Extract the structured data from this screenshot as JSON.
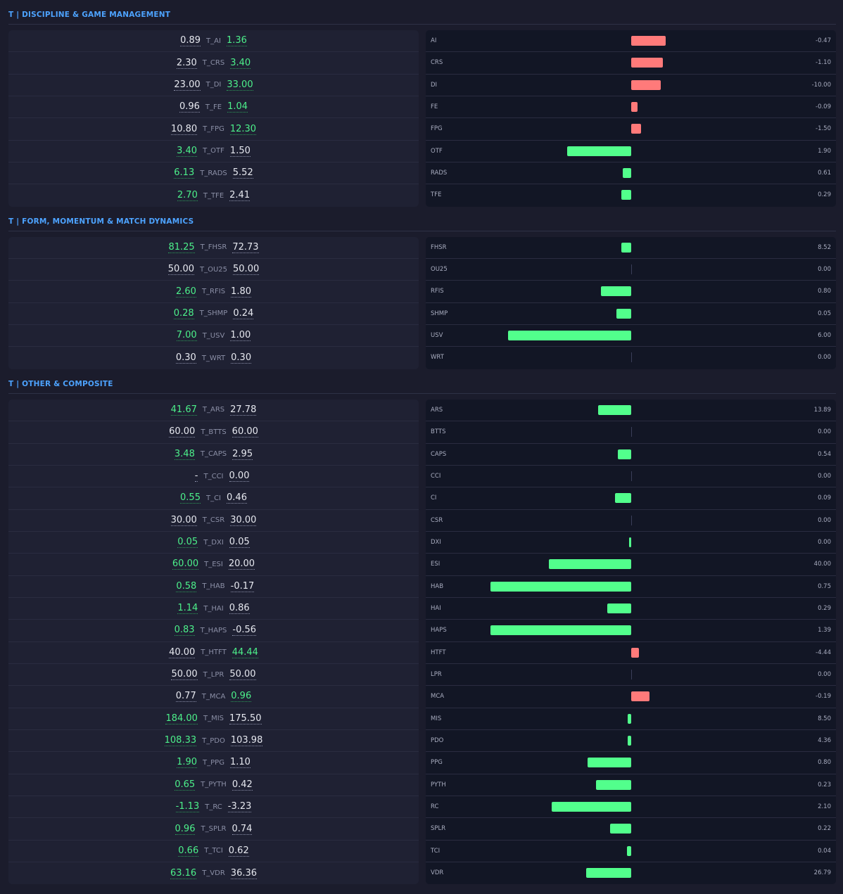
{
  "colors": {
    "accent": "#4da3ff",
    "better": "#4cf08a",
    "bar_positive": "#52ff8c",
    "bar_negative": "#ff7a7a"
  },
  "sections": [
    {
      "title": "T | DISCIPLINE & GAME MANAGEMENT",
      "rows": [
        {
          "left": "0.89",
          "label": "T_AI",
          "right": "1.36",
          "better": "right",
          "metric": "AI",
          "diff": "-0.47",
          "bar_pct": 17
        },
        {
          "left": "2.30",
          "label": "T_CRS",
          "right": "3.40",
          "better": "right",
          "metric": "CRS",
          "diff": "-1.10",
          "bar_pct": 15.5
        },
        {
          "left": "23.00",
          "label": "T_DI",
          "right": "33.00",
          "better": "right",
          "metric": "DI",
          "diff": "-10.00",
          "bar_pct": 14.5
        },
        {
          "left": "0.96",
          "label": "T_FE",
          "right": "1.04",
          "better": "right",
          "metric": "FE",
          "diff": "-0.09",
          "bar_pct": 3.4
        },
        {
          "left": "10.80",
          "label": "T_FPG",
          "right": "12.30",
          "better": "right",
          "metric": "FPG",
          "diff": "-1.50",
          "bar_pct": 5
        },
        {
          "left": "3.40",
          "label": "T_OTF",
          "right": "1.50",
          "better": "left",
          "metric": "OTF",
          "diff": "1.90",
          "bar_pct": 31
        },
        {
          "left": "6.13",
          "label": "T_RADS",
          "right": "5.52",
          "better": "left",
          "metric": "RADS",
          "diff": "0.61",
          "bar_pct": 4
        },
        {
          "left": "2.70",
          "label": "T_TFE",
          "right": "2.41",
          "better": "left",
          "metric": "TFE",
          "diff": "0.29",
          "bar_pct": 4.5
        }
      ]
    },
    {
      "title": "T | FORM, MOMENTUM & MATCH DYNAMICS",
      "rows": [
        {
          "left": "81.25",
          "label": "T_FHSR",
          "right": "72.73",
          "better": "left",
          "metric": "FHSR",
          "diff": "8.52",
          "bar_pct": 4.5
        },
        {
          "left": "50.00",
          "label": "T_OU25",
          "right": "50.00",
          "better": "none",
          "metric": "OU25",
          "diff": "0.00",
          "bar_pct": 0
        },
        {
          "left": "2.60",
          "label": "T_RFIS",
          "right": "1.80",
          "better": "left",
          "metric": "RFIS",
          "diff": "0.80",
          "bar_pct": 14.5
        },
        {
          "left": "0.28",
          "label": "T_SHMP",
          "right": "0.24",
          "better": "left",
          "metric": "SHMP",
          "diff": "0.05",
          "bar_pct": 7
        },
        {
          "left": "7.00",
          "label": "T_USV",
          "right": "1.00",
          "better": "left",
          "metric": "USV",
          "diff": "6.00",
          "bar_pct": 60
        },
        {
          "left": "0.30",
          "label": "T_WRT",
          "right": "0.30",
          "better": "none",
          "metric": "WRT",
          "diff": "0.00",
          "bar_pct": 0
        }
      ]
    },
    {
      "title": "T | OTHER & COMPOSITE",
      "rows": [
        {
          "left": "41.67",
          "label": "T_ARS",
          "right": "27.78",
          "better": "left",
          "metric": "ARS",
          "diff": "13.89",
          "bar_pct": 16
        },
        {
          "left": "60.00",
          "label": "T_BTTS",
          "right": "60.00",
          "better": "none",
          "metric": "BTTS",
          "diff": "0.00",
          "bar_pct": 0
        },
        {
          "left": "3.48",
          "label": "T_CAPS",
          "right": "2.95",
          "better": "left",
          "metric": "CAPS",
          "diff": "0.54",
          "bar_pct": 6.5
        },
        {
          "left": "-",
          "label": "T_CCI",
          "right": "0.00",
          "better": "none",
          "metric": "CCI",
          "diff": "0.00",
          "bar_pct": 0
        },
        {
          "left": "0.55",
          "label": "T_CI",
          "right": "0.46",
          "better": "left",
          "metric": "CI",
          "diff": "0.09",
          "bar_pct": 7.6
        },
        {
          "left": "30.00",
          "label": "T_CSR",
          "right": "30.00",
          "better": "none",
          "metric": "CSR",
          "diff": "0.00",
          "bar_pct": 0
        },
        {
          "left": "0.05",
          "label": "T_DXI",
          "right": "0.05",
          "better": "left",
          "metric": "DXI",
          "diff": "0.00",
          "bar_pct": 1
        },
        {
          "left": "60.00",
          "label": "T_ESI",
          "right": "20.00",
          "better": "left",
          "metric": "ESI",
          "diff": "40.00",
          "bar_pct": 40
        },
        {
          "left": "0.58",
          "label": "T_HAB",
          "right": "-0.17",
          "better": "left",
          "metric": "HAB",
          "diff": "0.75",
          "bar_pct": 68.6
        },
        {
          "left": "1.14",
          "label": "T_HAI",
          "right": "0.86",
          "better": "left",
          "metric": "HAI",
          "diff": "0.29",
          "bar_pct": 11.4
        },
        {
          "left": "0.83",
          "label": "T_HAPS",
          "right": "-0.56",
          "better": "left",
          "metric": "HAPS",
          "diff": "1.39",
          "bar_pct": 68.6
        },
        {
          "left": "40.00",
          "label": "T_HTFT",
          "right": "44.44",
          "better": "right",
          "metric": "HTFT",
          "diff": "-4.44",
          "bar_pct": 4
        },
        {
          "left": "50.00",
          "label": "T_LPR",
          "right": "50.00",
          "better": "none",
          "metric": "LPR",
          "diff": "0.00",
          "bar_pct": 0
        },
        {
          "left": "0.77",
          "label": "T_MCA",
          "right": "0.96",
          "better": "right",
          "metric": "MCA",
          "diff": "-0.19",
          "bar_pct": 9
        },
        {
          "left": "184.00",
          "label": "T_MIS",
          "right": "175.50",
          "better": "left",
          "metric": "MIS",
          "diff": "8.50",
          "bar_pct": 1.7
        },
        {
          "left": "108.33",
          "label": "T_PDO",
          "right": "103.98",
          "better": "left",
          "metric": "PDO",
          "diff": "4.36",
          "bar_pct": 1.7
        },
        {
          "left": "1.90",
          "label": "T_PPG",
          "right": "1.10",
          "better": "left",
          "metric": "PPG",
          "diff": "0.80",
          "bar_pct": 21
        },
        {
          "left": "0.65",
          "label": "T_PYTH",
          "right": "0.42",
          "better": "left",
          "metric": "PYTH",
          "diff": "0.23",
          "bar_pct": 17
        },
        {
          "left": "-1.13",
          "label": "T_RC",
          "right": "-3.23",
          "better": "left",
          "metric": "RC",
          "diff": "2.10",
          "bar_pct": 38.6
        },
        {
          "left": "0.96",
          "label": "T_SPLR",
          "right": "0.74",
          "better": "left",
          "metric": "SPLR",
          "diff": "0.22",
          "bar_pct": 10
        },
        {
          "left": "0.66",
          "label": "T_TCI",
          "right": "0.62",
          "better": "left",
          "metric": "TCI",
          "diff": "0.04",
          "bar_pct": 2
        },
        {
          "left": "63.16",
          "label": "T_VDR",
          "right": "36.36",
          "better": "left",
          "metric": "VDR",
          "diff": "26.79",
          "bar_pct": 21.7
        }
      ]
    }
  ]
}
